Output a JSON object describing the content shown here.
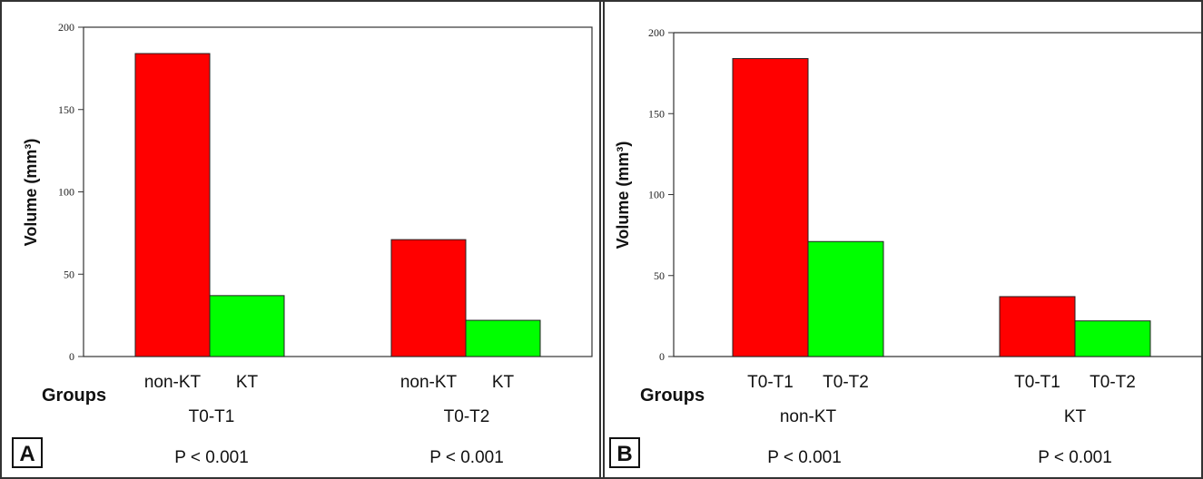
{
  "panels": [
    {
      "label": "A",
      "groups_label": "Groups",
      "p_values": [
        "P < 0.001",
        "P < 0.001"
      ]
    },
    {
      "label": "B",
      "groups_label": "Groups",
      "p_values": [
        "P < 0.001",
        "P < 0.001"
      ]
    }
  ],
  "chart_data": [
    {
      "type": "bar",
      "ylabel": "Volume (mm³)",
      "xlabel": "Groups",
      "ylim": [
        0,
        200
      ],
      "yticks": [
        0,
        50,
        100,
        150,
        200
      ],
      "groups": [
        {
          "label": "T0-T1",
          "bars": [
            {
              "label": "non-KT",
              "value": 184,
              "color": "#ff0000"
            },
            {
              "label": "KT",
              "value": 37,
              "color": "#00ff00"
            }
          ]
        },
        {
          "label": "T0-T2",
          "bars": [
            {
              "label": "non-KT",
              "value": 71,
              "color": "#ff0000"
            },
            {
              "label": "KT",
              "value": 22,
              "color": "#00ff00"
            }
          ]
        }
      ],
      "grid": false
    },
    {
      "type": "bar",
      "ylabel": "Volume (mm³)",
      "xlabel": "Groups",
      "ylim": [
        0,
        200
      ],
      "yticks": [
        0,
        50,
        100,
        150,
        200
      ],
      "groups": [
        {
          "label": "non-KT",
          "bars": [
            {
              "label": "T0-T1",
              "value": 184,
              "color": "#ff0000"
            },
            {
              "label": "T0-T2",
              "value": 71,
              "color": "#00ff00"
            }
          ]
        },
        {
          "label": "KT",
          "bars": [
            {
              "label": "T0-T1",
              "value": 37,
              "color": "#ff0000"
            },
            {
              "label": "T0-T2",
              "value": 22,
              "color": "#00ff00"
            }
          ]
        }
      ],
      "grid": false
    }
  ]
}
